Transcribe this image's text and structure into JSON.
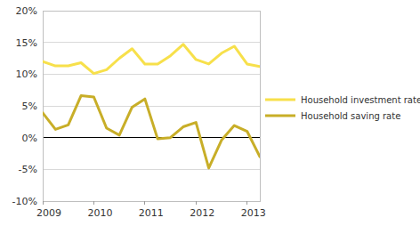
{
  "chart_data": {
    "type": "line",
    "x": [
      2009,
      2009.25,
      2009.5,
      2009.75,
      2010,
      2010.25,
      2010.5,
      2010.75,
      2011,
      2011.25,
      2011.5,
      2011.75,
      2012,
      2012.25,
      2012.5,
      2012.75,
      2013,
      2013.25
    ],
    "series": [
      {
        "name": "Household investment rate",
        "color": "#f7e04b",
        "values": [
          12.0,
          11.3,
          11.3,
          11.8,
          10.1,
          10.7,
          12.5,
          14.0,
          11.6,
          11.6,
          12.9,
          14.7,
          12.3,
          11.6,
          13.3,
          14.4,
          11.6,
          11.2
        ]
      },
      {
        "name": "Household saving rate",
        "color": "#c8ae28",
        "values": [
          3.9,
          1.3,
          2.0,
          6.6,
          6.4,
          1.5,
          0.4,
          4.8,
          6.1,
          -0.2,
          0.0,
          1.7,
          2.4,
          -4.8,
          -0.4,
          1.9,
          1.0,
          -3.0
        ]
      }
    ],
    "xlim": [
      2009,
      2013.25
    ],
    "xticks": [
      2009,
      2010,
      2011,
      2012,
      2013
    ],
    "ylim": [
      -10,
      20
    ],
    "yticks": [
      {
        "value": -10,
        "label": "-10%"
      },
      {
        "value": -5,
        "label": "-5%"
      },
      {
        "value": 0,
        "label": "0%"
      },
      {
        "value": 5,
        "label": "5%"
      },
      {
        "value": 10,
        "label": "10%"
      },
      {
        "value": 15,
        "label": "15%"
      },
      {
        "value": 20,
        "label": "20%"
      }
    ],
    "grid": true,
    "legend": "right"
  }
}
